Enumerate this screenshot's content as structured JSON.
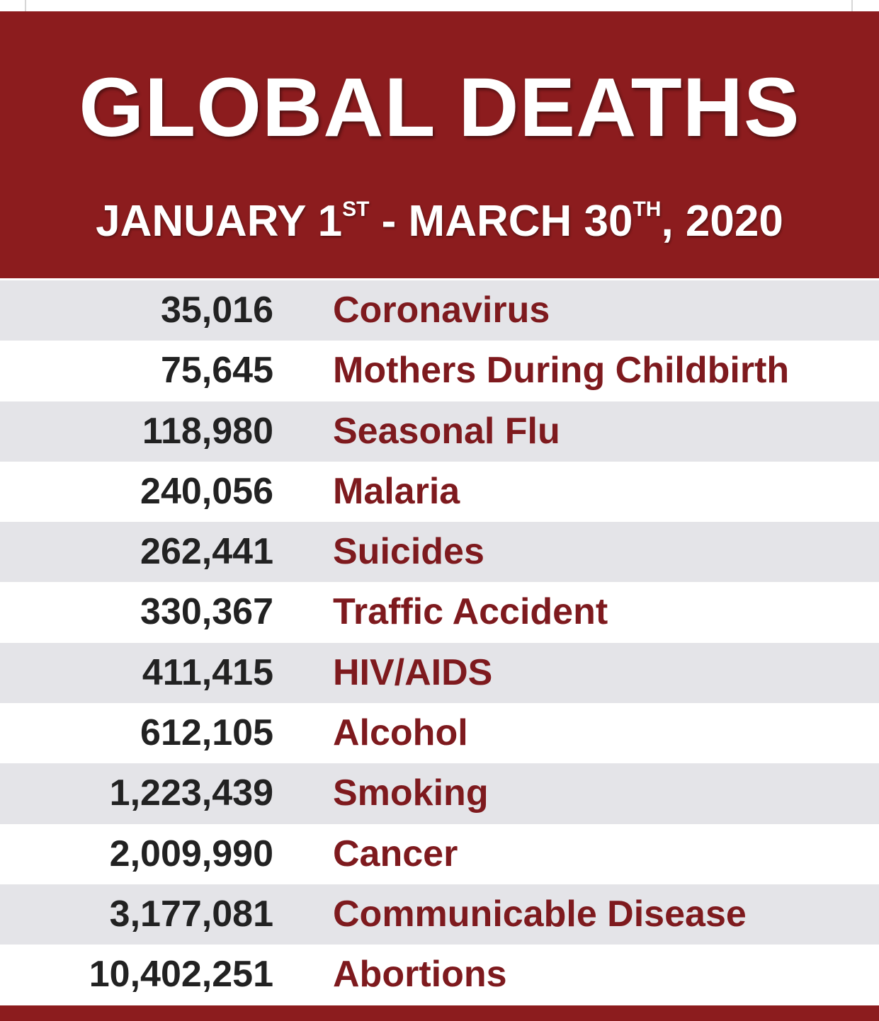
{
  "header": {
    "title": "GLOBAL DEATHS",
    "date_start_text": "JANUARY 1",
    "date_start_suffix": "ST",
    "date_separator": " - MARCH 30",
    "date_end_suffix": "TH",
    "date_year": ", 2020"
  },
  "rows": [
    {
      "count": "35,016",
      "cause": "Coronavirus"
    },
    {
      "count": "75,645",
      "cause": "Mothers During Childbirth"
    },
    {
      "count": "118,980",
      "cause": "Seasonal Flu"
    },
    {
      "count": "240,056",
      "cause": "Malaria"
    },
    {
      "count": "262,441",
      "cause": "Suicides"
    },
    {
      "count": "330,367",
      "cause": "Traffic Accident"
    },
    {
      "count": "411,415",
      "cause": "HIV/AIDS"
    },
    {
      "count": "612,105",
      "cause": "Alcohol"
    },
    {
      "count": "1,223,439",
      "cause": "Smoking"
    },
    {
      "count": "2,009,990",
      "cause": "Cancer"
    },
    {
      "count": "3,177,081",
      "cause": "Communicable Disease"
    },
    {
      "count": "10,402,251",
      "cause": "Abortions"
    }
  ],
  "colors": {
    "header_bg": "#8c1c1e",
    "cause_text": "#7e1a1e",
    "count_text": "#222222",
    "stripe_bg": "#e4e4e8"
  }
}
